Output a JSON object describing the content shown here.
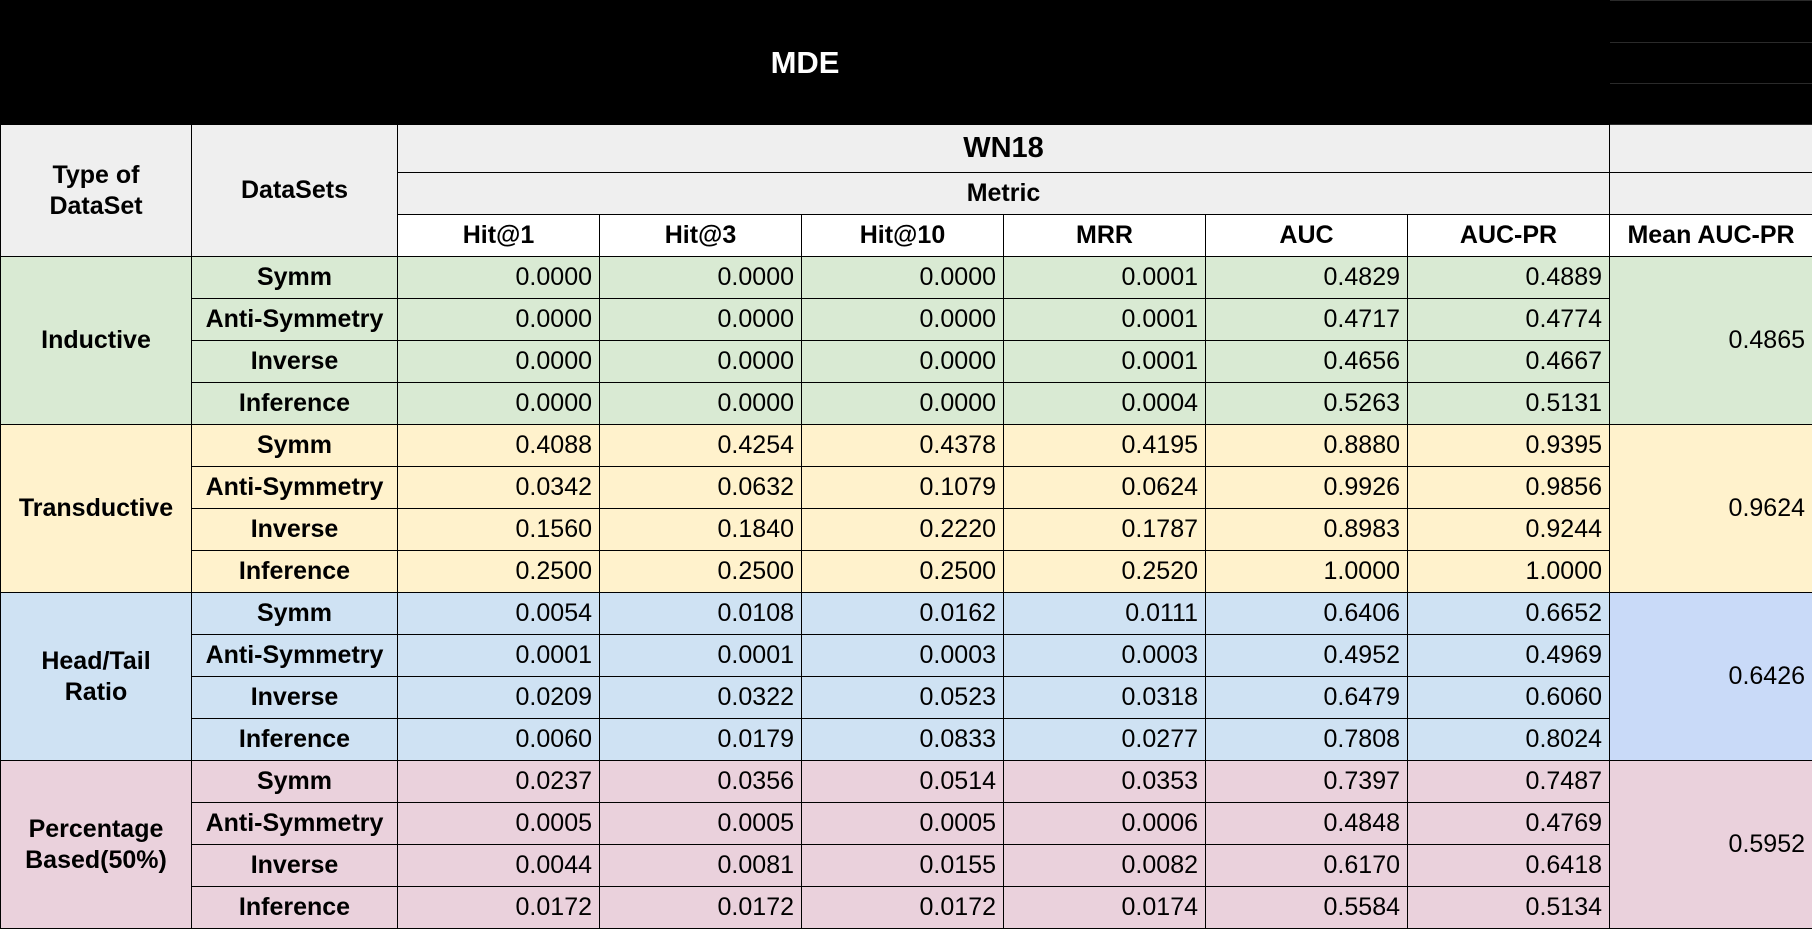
{
  "title": "MDE",
  "header": {
    "type_of_dataset": "Type of DataSet",
    "datasets": "DataSets",
    "dataset_name": "WN18",
    "metric": "Metric",
    "columns": [
      "Hit@1",
      "Hit@3",
      "Hit@10",
      "MRR",
      "AUC",
      "AUC-PR"
    ],
    "mean_column": "Mean AUC-PR"
  },
  "groups": [
    {
      "name": "Inductive",
      "color": "#d9ead3",
      "mean_color": "#d9ead3",
      "mean_auc_pr": "0.4865",
      "rows": [
        {
          "dataset": "Symm",
          "values": [
            "0.0000",
            "0.0000",
            "0.0000",
            "0.0001",
            "0.4829",
            "0.4889"
          ]
        },
        {
          "dataset": "Anti-Symmetry",
          "values": [
            "0.0000",
            "0.0000",
            "0.0000",
            "0.0001",
            "0.4717",
            "0.4774"
          ]
        },
        {
          "dataset": "Inverse",
          "values": [
            "0.0000",
            "0.0000",
            "0.0000",
            "0.0001",
            "0.4656",
            "0.4667"
          ]
        },
        {
          "dataset": "Inference",
          "values": [
            "0.0000",
            "0.0000",
            "0.0000",
            "0.0004",
            "0.5263",
            "0.5131"
          ]
        }
      ]
    },
    {
      "name": "Transductive",
      "color": "#fff2cc",
      "mean_color": "#fff2cc",
      "mean_auc_pr": "0.9624",
      "rows": [
        {
          "dataset": "Symm",
          "values": [
            "0.4088",
            "0.4254",
            "0.4378",
            "0.4195",
            "0.8880",
            "0.9395"
          ]
        },
        {
          "dataset": "Anti-Symmetry",
          "values": [
            "0.0342",
            "0.0632",
            "0.1079",
            "0.0624",
            "0.9926",
            "0.9856"
          ]
        },
        {
          "dataset": "Inverse",
          "values": [
            "0.1560",
            "0.1840",
            "0.2220",
            "0.1787",
            "0.8983",
            "0.9244"
          ]
        },
        {
          "dataset": "Inference",
          "values": [
            "0.2500",
            "0.2500",
            "0.2500",
            "0.2520",
            "1.0000",
            "1.0000"
          ]
        }
      ]
    },
    {
      "name": "Head/Tail Ratio",
      "color": "#cfe2f3",
      "mean_color": "#c9daf8",
      "mean_auc_pr": "0.6426",
      "rows": [
        {
          "dataset": "Symm",
          "values": [
            "0.0054",
            "0.0108",
            "0.0162",
            "0.0111",
            "0.6406",
            "0.6652"
          ]
        },
        {
          "dataset": "Anti-Symmetry",
          "values": [
            "0.0001",
            "0.0001",
            "0.0003",
            "0.0003",
            "0.4952",
            "0.4969"
          ]
        },
        {
          "dataset": "Inverse",
          "values": [
            "0.0209",
            "0.0322",
            "0.0523",
            "0.0318",
            "0.6479",
            "0.6060"
          ]
        },
        {
          "dataset": "Inference",
          "values": [
            "0.0060",
            "0.0179",
            "0.0833",
            "0.0277",
            "0.7808",
            "0.8024"
          ]
        }
      ]
    },
    {
      "name": "Percentage Based(50%)",
      "color": "#ead1dc",
      "mean_color": "#ead1dc",
      "mean_auc_pr": "0.5952",
      "rows": [
        {
          "dataset": "Symm",
          "values": [
            "0.0237",
            "0.0356",
            "0.0514",
            "0.0353",
            "0.7397",
            "0.7487"
          ]
        },
        {
          "dataset": "Anti-Symmetry",
          "values": [
            "0.0005",
            "0.0005",
            "0.0005",
            "0.0006",
            "0.4848",
            "0.4769"
          ]
        },
        {
          "dataset": "Inverse",
          "values": [
            "0.0044",
            "0.0081",
            "0.0155",
            "0.0082",
            "0.6170",
            "0.6418"
          ]
        },
        {
          "dataset": "Inference",
          "values": [
            "0.0172",
            "0.0172",
            "0.0172",
            "0.0174",
            "0.5584",
            "0.5134"
          ]
        }
      ]
    }
  ]
}
